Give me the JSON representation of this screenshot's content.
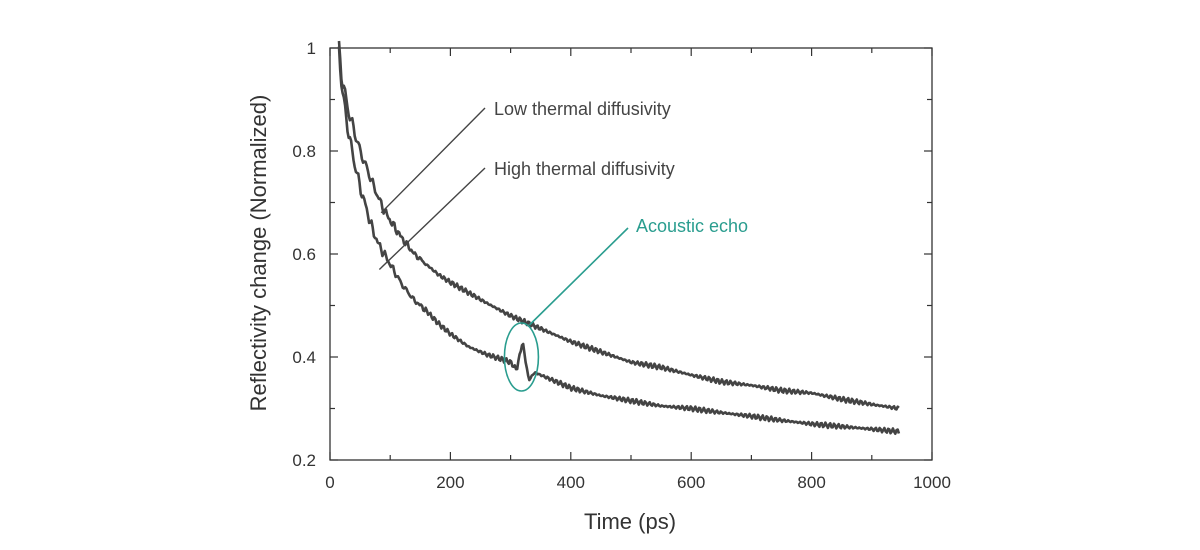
{
  "chart_data": {
    "type": "line",
    "title": "",
    "xlabel": "Time (ps)",
    "ylabel": "Reflectivity change (Normalized)",
    "xlim": [
      0,
      1000
    ],
    "ylim": [
      0.2,
      1.0
    ],
    "x_ticks": [
      0,
      200,
      400,
      600,
      800,
      1000
    ],
    "x_tick_labels": [
      "0",
      "200",
      "400",
      "600",
      "800",
      "1000"
    ],
    "y_ticks": [
      0.2,
      0.4,
      0.6,
      0.8,
      1.0
    ],
    "y_tick_labels": [
      "0.2",
      "0.4",
      "0.6",
      "0.8",
      "1"
    ],
    "line_color": "#444444",
    "accent_color": "#2a9d8f",
    "series": [
      {
        "name": "Low thermal diffusivity",
        "x": [
          15,
          20,
          30,
          40,
          50,
          60,
          70,
          80,
          90,
          100,
          120,
          140,
          160,
          180,
          200,
          230,
          260,
          300,
          350,
          400,
          450,
          500,
          550,
          600,
          650,
          700,
          750,
          800,
          850,
          900,
          945
        ],
        "y": [
          1.0,
          0.94,
          0.88,
          0.84,
          0.8,
          0.77,
          0.74,
          0.71,
          0.685,
          0.665,
          0.63,
          0.6,
          0.58,
          0.56,
          0.545,
          0.525,
          0.505,
          0.48,
          0.455,
          0.43,
          0.41,
          0.39,
          0.38,
          0.365,
          0.352,
          0.345,
          0.335,
          0.33,
          0.318,
          0.308,
          0.3
        ]
      },
      {
        "name": "High thermal diffusivity",
        "x": [
          15,
          20,
          30,
          40,
          50,
          60,
          70,
          80,
          90,
          100,
          120,
          140,
          160,
          180,
          200,
          230,
          260,
          300,
          310,
          320,
          330,
          340,
          350,
          400,
          450,
          500,
          550,
          600,
          650,
          700,
          750,
          800,
          850,
          900,
          945
        ],
        "y": [
          1.0,
          0.92,
          0.84,
          0.78,
          0.73,
          0.69,
          0.65,
          0.62,
          0.6,
          0.58,
          0.54,
          0.51,
          0.49,
          0.465,
          0.445,
          0.42,
          0.405,
          0.39,
          0.375,
          0.43,
          0.355,
          0.37,
          0.365,
          0.34,
          0.325,
          0.315,
          0.305,
          0.3,
          0.292,
          0.285,
          0.277,
          0.27,
          0.265,
          0.26,
          0.255
        ]
      }
    ],
    "annotations": [
      {
        "text": "Low thermal diffusivity",
        "target": [
          85,
          0.68
        ],
        "anchor": "label-right",
        "color": "#444444"
      },
      {
        "text": "High thermal diffusivity",
        "target": [
          82,
          0.57
        ],
        "anchor": "label-right",
        "color": "#444444"
      },
      {
        "text": "Acoustic echo",
        "target": [
          318,
          0.4
        ],
        "anchor": "label-right",
        "color": "#2a9d8f",
        "highlight": "ellipse"
      }
    ]
  }
}
